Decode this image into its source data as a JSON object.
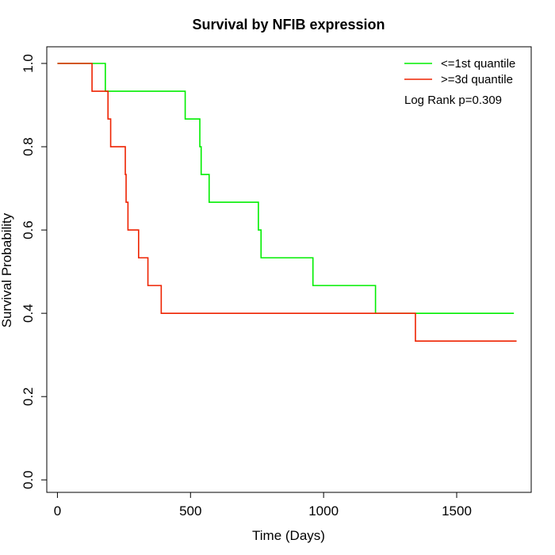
{
  "chart_data": {
    "type": "line",
    "title": "Survival by NFIB expression",
    "xlabel": "Time (Days)",
    "ylabel": "Survival Probability",
    "xlim": [
      -40,
      1780
    ],
    "ylim": [
      -0.03,
      1.04
    ],
    "x_ticks": [
      0,
      500,
      1000,
      1500
    ],
    "x_tick_labels": [
      "0",
      "500",
      "1000",
      "1500"
    ],
    "y_ticks": [
      0.0,
      0.2,
      0.4,
      0.6,
      0.8,
      1.0
    ],
    "y_tick_labels": [
      "0.0",
      "0.2",
      "0.4",
      "0.6",
      "0.8",
      "1.0"
    ],
    "grid": false,
    "legend_position": "top-right",
    "annotation": "Log Rank p=0.309",
    "series": [
      {
        "name": "<=1st quantile",
        "color": "#00ee00",
        "step": true,
        "points": [
          [
            0,
            1.0
          ],
          [
            180,
            0.9333
          ],
          [
            480,
            0.8667
          ],
          [
            535,
            0.8
          ],
          [
            540,
            0.7333
          ],
          [
            570,
            0.6667
          ],
          [
            755,
            0.6
          ],
          [
            765,
            0.5333
          ],
          [
            960,
            0.4667
          ],
          [
            1195,
            0.4
          ],
          [
            1715,
            0.4
          ]
        ]
      },
      {
        "name": ">=3d quantile",
        "color": "#ee2200",
        "step": true,
        "points": [
          [
            0,
            1.0
          ],
          [
            130,
            0.9333
          ],
          [
            190,
            0.8667
          ],
          [
            200,
            0.8
          ],
          [
            255,
            0.7333
          ],
          [
            258,
            0.6667
          ],
          [
            265,
            0.6
          ],
          [
            305,
            0.5333
          ],
          [
            340,
            0.4667
          ],
          [
            390,
            0.4
          ],
          [
            1345,
            0.3333
          ],
          [
            1725,
            0.3333
          ]
        ]
      }
    ]
  }
}
